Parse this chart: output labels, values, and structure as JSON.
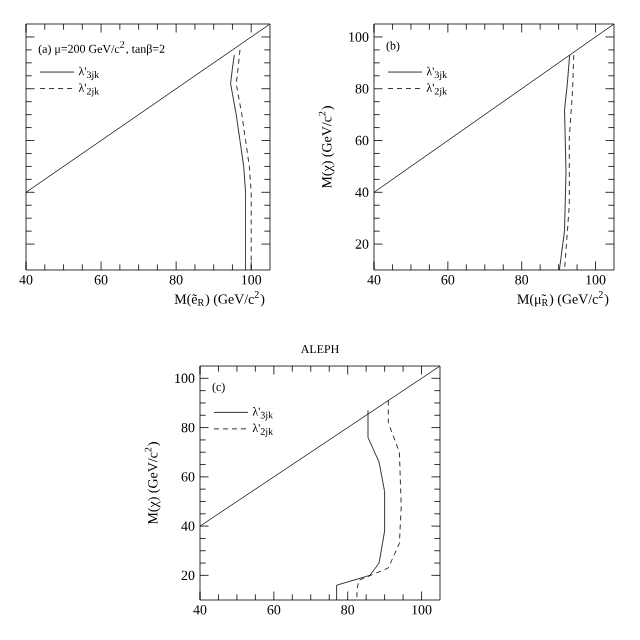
{
  "chart_data": [
    {
      "type": "line",
      "annotations": [
        "(a) μ=200 GeV/c$^{2}$, tanβ=2"
      ],
      "xlabel": "M(ẽ$_{R}$) (GeV/c$^{2}$)",
      "xlim": [
        40,
        105
      ],
      "ylim": [
        10,
        105
      ],
      "xticks": [
        40,
        60,
        80,
        100
      ],
      "yticks": [
        20,
        40,
        60,
        80,
        100
      ],
      "tick_labels": "x",
      "legend": "top left",
      "series": [
        {
          "color": "#000000",
          "line_style": "solid",
          "x": [
            40,
            105
          ],
          "values": [
            40,
            105
          ]
        },
        {
          "name": "λ'$_{3jk}$",
          "color": "#000000",
          "line_style": "solid",
          "x": [
            95.5,
            95,
            94.5,
            95,
            96,
            97,
            98,
            98.5,
            98.5,
            98.5,
            98.5
          ],
          "values": [
            93,
            88,
            82,
            78,
            70,
            60,
            50,
            40,
            30,
            20,
            10
          ]
        },
        {
          "name": "λ'$_{2jk}$",
          "color": "#000000",
          "line_style": "dashed",
          "x": [
            97,
            96.5,
            96,
            96.5,
            97.5,
            98.5,
            99.5,
            100,
            100,
            100,
            100
          ],
          "values": [
            95,
            88,
            82,
            78,
            70,
            60,
            50,
            40,
            30,
            20,
            10
          ]
        }
      ]
    },
    {
      "type": "line",
      "annotations": [
        "(b)"
      ],
      "xlabel": "M(μ̃$_{R}$) (GeV/c$^{2}$)",
      "ylabel": "M(χ) (GeV/c$^{2}$)",
      "xlim": [
        40,
        105
      ],
      "ylim": [
        10,
        105
      ],
      "xticks": [
        40,
        60,
        80,
        100
      ],
      "yticks": [
        20,
        40,
        60,
        80,
        100
      ],
      "legend": "top left",
      "series": [
        {
          "color": "#000000",
          "line_style": "solid",
          "x": [
            40,
            105
          ],
          "values": [
            40,
            105
          ]
        },
        {
          "name": "λ'$_{3jk}$",
          "color": "#000000",
          "line_style": "solid",
          "x": [
            93,
            92.3,
            91.6,
            92,
            91.6,
            90.2
          ],
          "values": [
            93,
            81,
            72,
            48,
            25,
            10
          ]
        },
        {
          "name": "λ'$_{2jk}$",
          "color": "#000000",
          "line_style": "dashed",
          "x": [
            94.1,
            93.8,
            92.9,
            92.9,
            91.6
          ],
          "values": [
            93,
            80,
            61,
            35,
            10
          ]
        }
      ]
    },
    {
      "type": "line",
      "title": "ALEPH",
      "annotations": [
        "(c)"
      ],
      "ylabel": "M(χ) (GeV/c$^{2}$)",
      "xlim": [
        40,
        105
      ],
      "ylim": [
        10,
        105
      ],
      "xticks": [
        40,
        60,
        80,
        100
      ],
      "yticks": [
        20,
        40,
        60,
        80,
        100
      ],
      "legend": "top left",
      "series": [
        {
          "color": "#000000",
          "line_style": "solid",
          "x": [
            40,
            105
          ],
          "values": [
            40,
            105
          ]
        },
        {
          "name": "λ'$_{3jk}$",
          "color": "#000000",
          "line_style": "solid",
          "x": [
            85.5,
            85.5,
            88.5,
            90,
            90,
            88.5,
            86,
            77,
            77
          ],
          "values": [
            87,
            76,
            66,
            54,
            38,
            25,
            20,
            16,
            10
          ]
        },
        {
          "name": "λ'$_{2jk}$",
          "color": "#000000",
          "line_style": "dashed",
          "x": [
            91,
            91,
            94,
            94.5,
            94,
            91,
            83,
            82.5,
            82.5
          ],
          "values": [
            91,
            82,
            70,
            48,
            33,
            23,
            18,
            14,
            10
          ]
        }
      ]
    }
  ]
}
